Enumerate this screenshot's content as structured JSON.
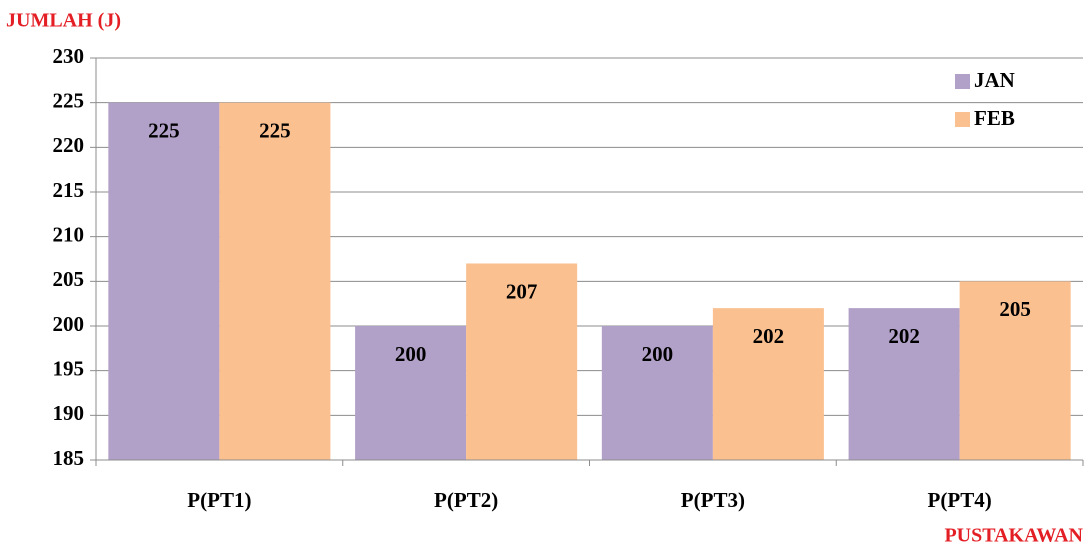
{
  "chart_data": {
    "type": "bar",
    "y_label": "JUMLAH (J)",
    "x_label": "PUSTAKAWAN",
    "categories": [
      "P(PT1)",
      "P(PT2)",
      "P(PT3)",
      "P(PT4)"
    ],
    "series": [
      {
        "name": "JAN",
        "color": "#b1a0c7",
        "values": [
          225,
          200,
          200,
          202
        ]
      },
      {
        "name": "FEB",
        "color": "#fac090",
        "values": [
          225,
          207,
          202,
          205
        ]
      }
    ],
    "ylim": [
      185,
      230
    ],
    "yticks": [
      185,
      190,
      195,
      200,
      205,
      210,
      215,
      220,
      225,
      230
    ],
    "grid": true,
    "legend": "top-right"
  }
}
